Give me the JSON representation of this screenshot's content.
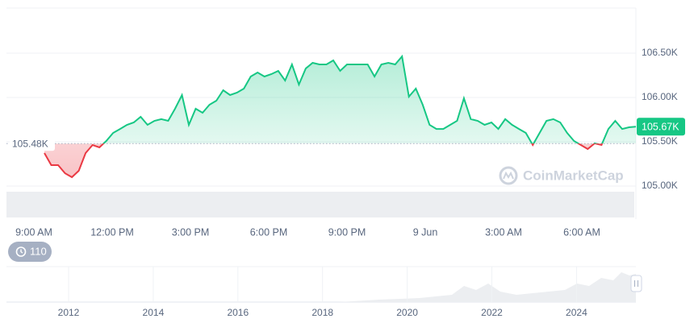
{
  "chart_data": {
    "type": "line",
    "values": [
      105373,
      105236,
      105236,
      105145,
      105100,
      105173,
      105373,
      105464,
      105436,
      105509,
      105600,
      105645,
      105691,
      105718,
      105782,
      105691,
      105736,
      105755,
      105736,
      105873,
      106027,
      105691,
      105873,
      105827,
      105918,
      105964,
      106082,
      106027,
      106055,
      106100,
      106236,
      106282,
      106236,
      106264,
      106300,
      106191,
      106373,
      106145,
      106327,
      106391,
      106373,
      106373,
      106418,
      106300,
      106373,
      106373,
      106373,
      106373,
      106236,
      106373,
      106391,
      106373,
      106464,
      106009,
      106100,
      105918,
      105691,
      105645,
      105645,
      105691,
      105736,
      105991,
      105755,
      105736,
      105691,
      105718,
      105645,
      105755,
      105691,
      105645,
      105600,
      105464,
      105600,
      105736,
      105755,
      105718,
      105600,
      105509,
      105464,
      105418,
      105482,
      105464,
      105645,
      105736,
      105645,
      105664,
      105670
    ],
    "up_color": "#16c784",
    "down_color": "#ea3943",
    "baseline": {
      "value": 105480,
      "label": "105.48K"
    },
    "last_price": {
      "value": 105670,
      "label": "105.67K"
    },
    "ylim": [
      105000,
      107000
    ],
    "yticks": [
      {
        "value": 105000,
        "label": "105.00K"
      },
      {
        "value": 105500,
        "label": "105.50K"
      },
      {
        "value": 106000,
        "label": "106.00K"
      },
      {
        "value": 106500,
        "label": "106.50K"
      }
    ],
    "x_labels": [
      "9:00 AM",
      "12:00 PM",
      "3:00 PM",
      "6:00 PM",
      "9:00 PM",
      "9 Jun",
      "3:00 AM",
      "6:00 AM"
    ],
    "grid": true,
    "watermark": "CoinMarketCap",
    "badge": 110,
    "navigator": {
      "years": [
        2012,
        2014,
        2016,
        2018,
        2020,
        2022,
        2024
      ]
    }
  }
}
